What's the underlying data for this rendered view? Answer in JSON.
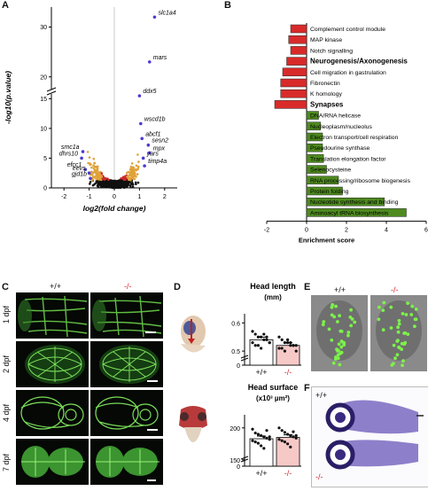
{
  "panels": {
    "a": "A",
    "b": "B",
    "c": "C",
    "d": "D",
    "e": "E",
    "f": "F"
  },
  "colors": {
    "up": "#e0a23a",
    "down_sig": "#cc2a2a",
    "ns": "#111111",
    "bar_red": "#d92a2a",
    "bar_green": "#4e8a1f",
    "mutant": "#d9262b",
    "highlight": "#4b3bd0"
  },
  "chart_data": [
    {
      "type": "scatter",
      "title": "",
      "xlabel": "log2(fold change)",
      "ylabel": "-log10(p.value)",
      "x_ticks": [
        "-2",
        "-1",
        "0",
        "1",
        "2"
      ],
      "y_ticks": [
        "0",
        "5",
        "10",
        "15",
        "20",
        "30"
      ],
      "xlim": [
        -2.5,
        2.5
      ],
      "ylim_lower": [
        0,
        15.5
      ],
      "ylim_upper": [
        18,
        34
      ],
      "y_axis_break": true,
      "labeled_genes": [
        {
          "name": "slc1a4",
          "x": 1.6,
          "y": 32
        },
        {
          "name": "mars",
          "x": 1.4,
          "y": 23
        },
        {
          "name": "ddx5",
          "x": 1.0,
          "y": 16.2
        },
        {
          "name": "wscd1b",
          "x": 1.05,
          "y": 10.8
        },
        {
          "name": "abcf1",
          "x": 1.1,
          "y": 8.3
        },
        {
          "name": "sesn2",
          "x": 1.35,
          "y": 7.2
        },
        {
          "name": "mpx",
          "x": 1.4,
          "y": 5.9
        },
        {
          "name": "yars",
          "x": 1.15,
          "y": 5.0
        },
        {
          "name": "timp4a",
          "x": 1.2,
          "y": 3.7
        },
        {
          "name": "smc1a",
          "x": -1.25,
          "y": 6.1
        },
        {
          "name": "dhrs10",
          "x": -1.3,
          "y": 5.0
        },
        {
          "name": "efcc1",
          "x": -1.15,
          "y": 3.1
        },
        {
          "name": "eevs",
          "x": -1.0,
          "y": 2.5
        },
        {
          "name": "gjd1b",
          "x": -0.95,
          "y": 1.6
        }
      ]
    },
    {
      "type": "bar",
      "orientation": "horizontal",
      "xlabel": "Enrichment score",
      "x_ticks": [
        "-2",
        "0",
        "2",
        "4",
        "6"
      ],
      "xlim": [
        -2,
        6
      ],
      "groups": [
        {
          "label": "Neurogenesis/Axonogenesis",
          "color": "#d92a2a",
          "bold": true
        },
        {
          "label": "Synapses",
          "color": "#4e8a1f",
          "bold": true
        }
      ],
      "categories": [
        "Complement control module",
        "MAP kinase",
        "Notch signalling",
        "Neurogenesis/Axonogenesis",
        "Cell migration in gastrulation",
        "Fibronectin",
        "K homology",
        "Synapses",
        "DNA/RNA helicase",
        "Nucleoplasm/nucleolus",
        "Electron transport/cell respiration",
        "Pseudourine synthase",
        "Translation elongation factor",
        "Selenocysteine",
        "RNA processing/ribosome biogenesis",
        "Protein folding",
        "Nucleotide synthesis and binding",
        "Aminoacyl tRNA biosynthesis"
      ],
      "values": [
        -0.8,
        -0.9,
        -0.8,
        -1.0,
        -1.2,
        -1.3,
        -1.3,
        -1.6,
        0.6,
        0.7,
        0.8,
        0.8,
        0.85,
        1.0,
        1.6,
        1.8,
        3.9,
        5.0
      ]
    },
    {
      "type": "bar",
      "title": "Head length",
      "unit": "(mm)",
      "categories": [
        "+/+",
        "-/-"
      ],
      "values": [
        0.54,
        0.52
      ],
      "y_ticks": [
        "0",
        "0.5",
        "0.6"
      ],
      "ylim": [
        0.45,
        0.62
      ],
      "points": [
        [
          0.57,
          0.56,
          0.55,
          0.55,
          0.54,
          0.54,
          0.53,
          0.53,
          0.52,
          0.52,
          0.51,
          0.56,
          0.55,
          0.53
        ],
        [
          0.55,
          0.54,
          0.53,
          0.53,
          0.52,
          0.52,
          0.52,
          0.51,
          0.51,
          0.5,
          0.54,
          0.53,
          0.52,
          0.5
        ]
      ]
    },
    {
      "type": "bar",
      "title": "Head surface",
      "unit": "(x10³ µm²)",
      "categories": [
        "+/+",
        "-/-"
      ],
      "values": [
        183,
        185
      ],
      "y_ticks": [
        "0",
        "150",
        "200"
      ],
      "ylim": [
        140,
        215
      ],
      "points": [
        [
          198,
          192,
          190,
          188,
          186,
          184,
          182,
          180,
          178,
          176,
          172,
          168,
          196,
          186
        ],
        [
          200,
          196,
          193,
          190,
          188,
          186,
          184,
          182,
          180,
          178,
          175,
          170,
          194,
          188
        ]
      ]
    }
  ],
  "panel_c": {
    "col_wt": "+/+",
    "col_mut": "-/-",
    "rows": [
      "1 dpf",
      "2 dpf",
      "4 dpf",
      "7 dpf"
    ]
  },
  "panel_e": {
    "col_wt": "+/+",
    "col_mut": "-/-"
  },
  "panel_f": {
    "wt": "+/+",
    "mut": "-/-"
  }
}
